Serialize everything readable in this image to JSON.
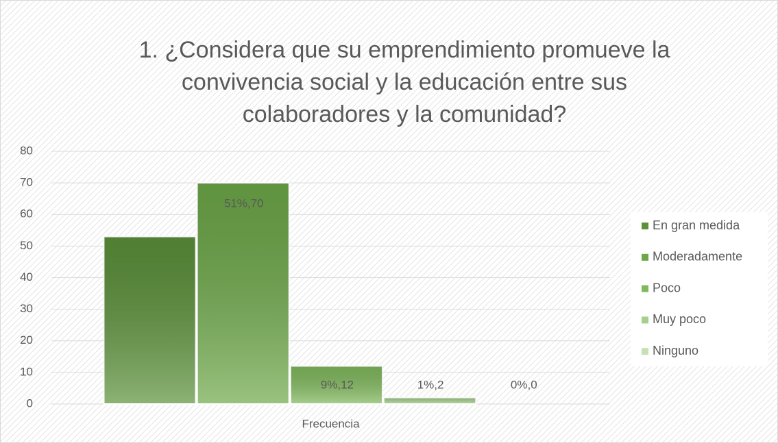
{
  "chart_data": {
    "type": "bar",
    "title": "1. ¿Considera que su emprendimiento promueve la convivencia social y la educación entre sus colaboradores y la comunidad?",
    "categories": [
      "Frecuencia"
    ],
    "series": [
      {
        "name": "En gran medida",
        "color": "#5b9139",
        "values": [
          53
        ],
        "value_labels": [
          null
        ]
      },
      {
        "name": "Moderadamente",
        "color": "#6da848",
        "values": [
          70
        ],
        "value_labels": [
          "51%,70"
        ]
      },
      {
        "name": "Poco",
        "color": "#80b95c",
        "values": [
          12
        ],
        "value_labels": [
          "9%,12"
        ]
      },
      {
        "name": "Muy poco",
        "color": "#a5cf8b",
        "values": [
          2
        ],
        "value_labels": [
          "1%,2"
        ]
      },
      {
        "name": "Ninguno",
        "color": "#c6e1b5",
        "values": [
          0
        ],
        "value_labels": [
          "0%,0"
        ]
      }
    ],
    "ylim": [
      0,
      80
    ],
    "yticks": [
      0,
      10,
      20,
      30,
      40,
      50,
      60,
      70,
      80
    ],
    "grid": true,
    "legend": "right"
  }
}
